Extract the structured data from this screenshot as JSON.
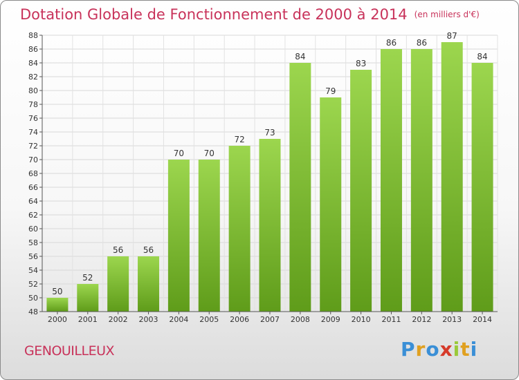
{
  "title": "Dotation Globale de Fonctionnement de 2000 à 2014",
  "unit": "(en milliers d'€)",
  "commune": "GENOUILLEUX",
  "logo": {
    "text": "Proxiti",
    "colors": [
      "#3a8fd6",
      "#e0a020",
      "#3a8fd6",
      "#d63a2a",
      "#9ac93a",
      "#e0a020",
      "#3a8fd6"
    ]
  },
  "chart_data": {
    "type": "bar",
    "categories": [
      "2000",
      "2001",
      "2002",
      "2003",
      "2004",
      "2005",
      "2006",
      "2007",
      "2008",
      "2009",
      "2010",
      "2011",
      "2012",
      "2013",
      "2014"
    ],
    "values": [
      50,
      52,
      56,
      56,
      70,
      70,
      72,
      73,
      84,
      79,
      83,
      86,
      86,
      87,
      84
    ],
    "title": "Dotation Globale de Fonctionnement de 2000 à 2014",
    "ylim": [
      48,
      88
    ],
    "yticks": [
      48,
      50,
      52,
      54,
      56,
      58,
      60,
      62,
      64,
      66,
      68,
      70,
      72,
      74,
      76,
      78,
      80,
      82,
      84,
      86,
      88
    ],
    "grid": true,
    "bar_color_top": "#9cd64e",
    "bar_color_bottom": "#5f9c1a"
  }
}
